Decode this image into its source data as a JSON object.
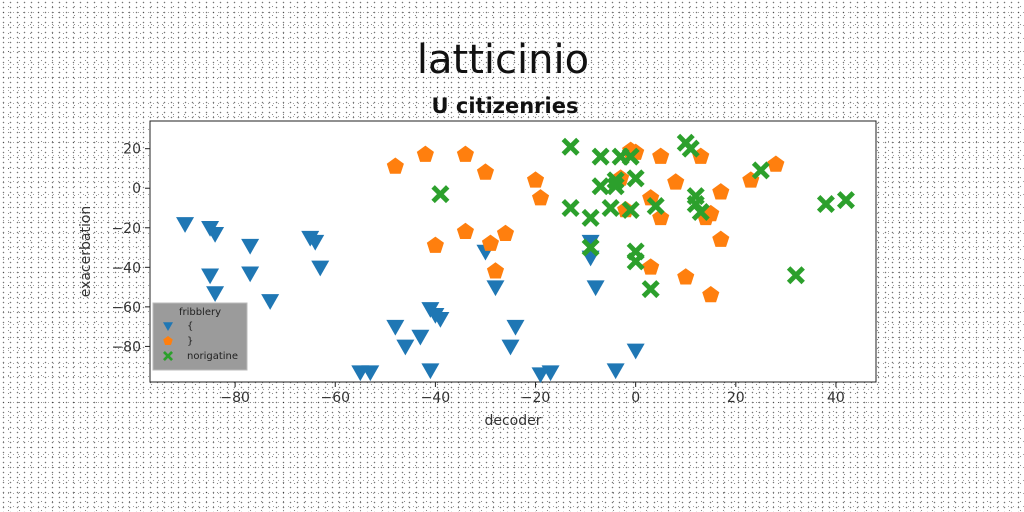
{
  "chart_data": {
    "type": "scatter",
    "title": "latticinio",
    "subtitle": "U citizenries",
    "xlabel": "decoder",
    "ylabel": "exacerbation",
    "xlim": [
      -97,
      48
    ],
    "ylim": [
      -98,
      34
    ],
    "xticks": [
      -80,
      -60,
      -40,
      -20,
      0,
      20,
      40
    ],
    "yticks": [
      20,
      0,
      -20,
      -40,
      -60,
      -80
    ],
    "grid": false,
    "legend": {
      "title": "fribblery",
      "placement": "lower-left"
    },
    "series": [
      {
        "name": "{",
        "marker": "triangle-down",
        "color": "#1f77b4",
        "points": [
          [
            -90,
            -18
          ],
          [
            -85,
            -20
          ],
          [
            -84,
            -23
          ],
          [
            -77,
            -29
          ],
          [
            -85,
            -44
          ],
          [
            -77,
            -43
          ],
          [
            -84,
            -53
          ],
          [
            -73,
            -57
          ],
          [
            -65,
            -25
          ],
          [
            -64,
            -27
          ],
          [
            -63,
            -40
          ],
          [
            -48,
            -70
          ],
          [
            -46,
            -80
          ],
          [
            -43,
            -75
          ],
          [
            -41,
            -61
          ],
          [
            -41,
            -92
          ],
          [
            -40,
            -64
          ],
          [
            -39,
            -66
          ],
          [
            -55,
            -93
          ],
          [
            -53,
            -93
          ],
          [
            -30,
            -32
          ],
          [
            -28,
            -50
          ],
          [
            -24,
            -70
          ],
          [
            -25,
            -80
          ],
          [
            -19,
            -94
          ],
          [
            -17,
            -93
          ],
          [
            -9,
            -27
          ],
          [
            -9,
            -35
          ],
          [
            -8,
            -50
          ],
          [
            -4,
            -92
          ],
          [
            0,
            -82
          ]
        ]
      },
      {
        "name": "}",
        "marker": "pentagon",
        "color": "#ff7f0e",
        "points": [
          [
            -48,
            11
          ],
          [
            -42,
            17
          ],
          [
            -34,
            17
          ],
          [
            -30,
            8
          ],
          [
            -20,
            4
          ],
          [
            -19,
            -5
          ],
          [
            -40,
            -29
          ],
          [
            -34,
            -22
          ],
          [
            -29,
            -28
          ],
          [
            -26,
            -23
          ],
          [
            -28,
            -42
          ],
          [
            -1,
            19
          ],
          [
            0,
            18
          ],
          [
            -3,
            5
          ],
          [
            -2,
            -11
          ],
          [
            5,
            16
          ],
          [
            8,
            3
          ],
          [
            13,
            16
          ],
          [
            17,
            -2
          ],
          [
            23,
            4
          ],
          [
            28,
            12
          ],
          [
            3,
            -5
          ],
          [
            5,
            -15
          ],
          [
            14,
            -15
          ],
          [
            15,
            -13
          ],
          [
            17,
            -26
          ],
          [
            3,
            -40
          ],
          [
            10,
            -45
          ],
          [
            15,
            -54
          ]
        ]
      },
      {
        "name": "norigatine",
        "marker": "x-thick",
        "color": "#2ca02c",
        "points": [
          [
            -39,
            -3
          ],
          [
            -13,
            21
          ],
          [
            -7,
            16
          ],
          [
            -3,
            16
          ],
          [
            -1,
            16
          ],
          [
            -7,
            1
          ],
          [
            -4,
            1
          ],
          [
            -4,
            4
          ],
          [
            0,
            5
          ],
          [
            -13,
            -10
          ],
          [
            -9,
            -15
          ],
          [
            -5,
            -10
          ],
          [
            -1,
            -11
          ],
          [
            4,
            -9
          ],
          [
            10,
            23
          ],
          [
            11,
            20
          ],
          [
            12,
            -4
          ],
          [
            12,
            -8
          ],
          [
            13,
            -12
          ],
          [
            25,
            9
          ],
          [
            38,
            -8
          ],
          [
            42,
            -6
          ],
          [
            32,
            -44
          ],
          [
            -9,
            -30
          ],
          [
            0,
            -32
          ],
          [
            0,
            -37
          ],
          [
            3,
            -51
          ]
        ]
      }
    ]
  }
}
